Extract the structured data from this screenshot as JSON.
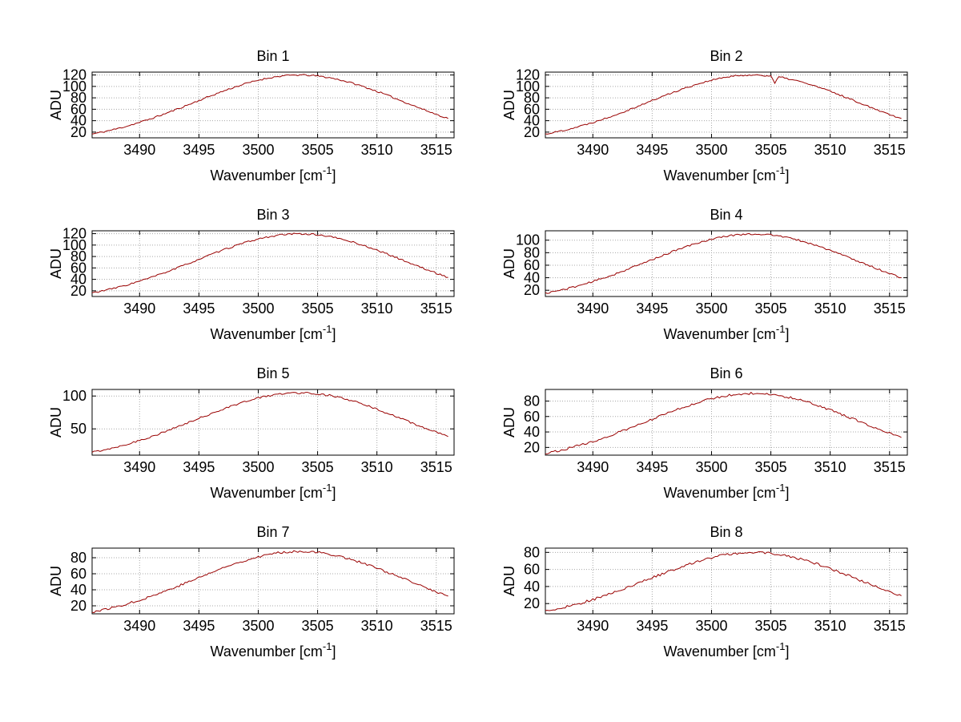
{
  "colors": {
    "background": "#ffffff",
    "axis": "#000000",
    "grid": "#a8a8a8",
    "text": "#000000",
    "line": "#990000"
  },
  "chart_data": {
    "type": "line",
    "layout": {
      "rows": 4,
      "cols": 2
    },
    "grid": true,
    "line_color": "#990000",
    "noise_amp": 1.4,
    "xlabel": {
      "prefix": "Wavenumber [cm",
      "superscript": "-1",
      "suffix": "]"
    },
    "ylabel": "ADU",
    "xlim": [
      3486,
      3516.5
    ],
    "xticks": [
      3490,
      3495,
      3500,
      3505,
      3510,
      3515
    ],
    "x": [
      3486,
      3487,
      3488,
      3489,
      3490,
      3491,
      3492,
      3493,
      3494,
      3495,
      3496,
      3497,
      3498,
      3499,
      3500,
      3501,
      3502,
      3503,
      3504,
      3505,
      3506,
      3507,
      3508,
      3509,
      3510,
      3511,
      3512,
      3513,
      3514,
      3515,
      3516
    ],
    "charts": [
      {
        "title": "Bin 1",
        "seed": 11,
        "ylim": [
          10,
          125
        ],
        "yticks": [
          20,
          40,
          60,
          80,
          100,
          120
        ],
        "values": [
          16.6,
          20.7,
          25.4,
          30.9,
          37,
          43.8,
          51.1,
          58.9,
          67,
          75.3,
          83.5,
          91.4,
          98.7,
          105.3,
          110.9,
          115.3,
          118.3,
          119.8,
          119.8,
          118.3,
          115.3,
          110.9,
          105.3,
          98.7,
          91.4,
          83.5,
          75.3,
          67,
          58.9,
          51.1,
          43.8
        ]
      },
      {
        "title": "Bin 2",
        "seed": 22,
        "ylim": [
          10,
          125
        ],
        "yticks": [
          20,
          40,
          60,
          80,
          100,
          120
        ],
        "spikes": [
          {
            "x": 3505.4,
            "dy": -13
          }
        ],
        "values": [
          16.6,
          20.7,
          25.4,
          30.9,
          37,
          43.8,
          51.1,
          58.9,
          67,
          75.3,
          83.5,
          91.4,
          98.7,
          105.3,
          110.9,
          115.3,
          118.3,
          119.8,
          119.8,
          118.3,
          115.3,
          110.9,
          105.3,
          98.7,
          91.4,
          83.5,
          75.3,
          67,
          58.9,
          51.1,
          43.8
        ]
      },
      {
        "title": "Bin 3",
        "seed": 33,
        "ylim": [
          10,
          125
        ],
        "yticks": [
          20,
          40,
          60,
          80,
          100,
          120
        ],
        "values": [
          16.3,
          20.4,
          25.1,
          30.6,
          36.8,
          43.5,
          50.8,
          58.6,
          66.7,
          75,
          83.2,
          91.1,
          98.4,
          105,
          110.6,
          115,
          118,
          119.6,
          119.6,
          118,
          115,
          110.6,
          105,
          98.4,
          91.1,
          83.2,
          75,
          66.7,
          58.6,
          50.8,
          43.5
        ]
      },
      {
        "title": "Bin 4",
        "seed": 44,
        "ylim": [
          10,
          115
        ],
        "yticks": [
          20,
          40,
          60,
          80,
          100
        ],
        "values": [
          15.2,
          19,
          23.3,
          28.3,
          33.9,
          40.1,
          46.8,
          54,
          61.4,
          69,
          76.5,
          83.7,
          90.5,
          96.5,
          101.6,
          105.7,
          108.4,
          109.8,
          109.8,
          108.4,
          105.7,
          101.6,
          96.5,
          90.5,
          83.7,
          76.5,
          69,
          61.4,
          54,
          46.8,
          40.1
        ]
      },
      {
        "title": "Bin 5",
        "seed": 55,
        "ylim": [
          10,
          110
        ],
        "yticks": [
          50,
          100
        ],
        "values": [
          14.5,
          18.1,
          22.3,
          27,
          32.4,
          38.3,
          44.7,
          51.5,
          58.6,
          65.9,
          73,
          79.9,
          86.4,
          92.1,
          97,
          100.9,
          103.5,
          104.8,
          104.8,
          103.5,
          100.9,
          97,
          92.1,
          86.4,
          79.9,
          73,
          65.9,
          58.6,
          51.5,
          44.7,
          38.3
        ]
      },
      {
        "title": "Bin 6",
        "seed": 66,
        "ylim": [
          10,
          95
        ],
        "yticks": [
          20,
          40,
          60,
          80
        ],
        "values": [
          12.5,
          15.5,
          19.1,
          23.2,
          27.7,
          32.8,
          38.3,
          44.2,
          50.3,
          56.4,
          62.6,
          68.5,
          74,
          79,
          83.2,
          86.4,
          88.7,
          89.9,
          89.9,
          88.7,
          86.4,
          83.2,
          79,
          74,
          68.5,
          62.6,
          56.4,
          50.3,
          44.2,
          38.3,
          32.8
        ]
      },
      {
        "title": "Bin 7",
        "seed": 77,
        "ylim": [
          10,
          92
        ],
        "yticks": [
          20,
          40,
          60,
          80
        ],
        "values": [
          12.2,
          15.2,
          18.7,
          22.7,
          27.1,
          32.1,
          37.5,
          43.2,
          49.1,
          55.2,
          61.2,
          67,
          72.4,
          77.2,
          81.3,
          84.5,
          86.7,
          87.9,
          87.9,
          86.7,
          84.5,
          81.3,
          77.2,
          72.4,
          67,
          61.2,
          55.2,
          49.1,
          43.2,
          37.5,
          32.1
        ]
      },
      {
        "title": "Bin 8",
        "seed": 88,
        "ylim": [
          8,
          85
        ],
        "yticks": [
          20,
          40,
          60,
          80
        ],
        "values": [
          11.1,
          13.8,
          17,
          20.6,
          24.7,
          29.2,
          34.1,
          39.3,
          44.7,
          50.2,
          55.6,
          60.9,
          65.8,
          70.2,
          73.9,
          76.8,
          78.8,
          79.9,
          79.9,
          78.8,
          76.8,
          73.9,
          70.2,
          65.8,
          60.9,
          55.6,
          50.2,
          44.7,
          39.3,
          34.1,
          29.2
        ]
      }
    ]
  }
}
